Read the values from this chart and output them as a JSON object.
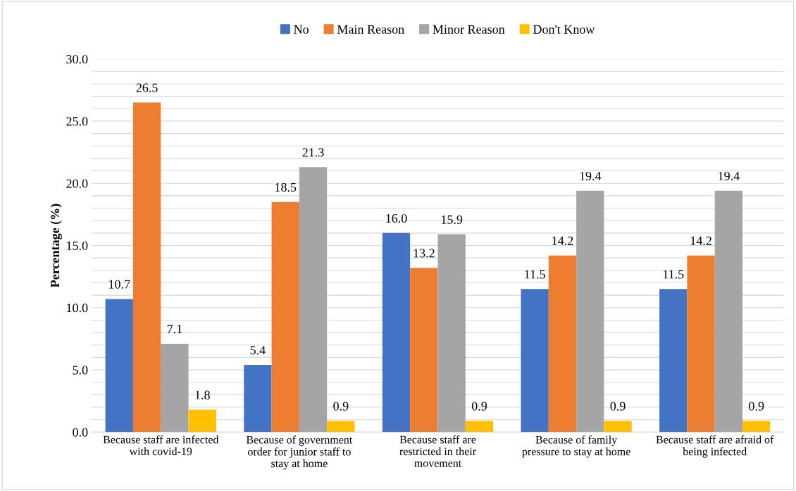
{
  "chart_data": {
    "type": "bar",
    "ylabel": "Percentage (%)",
    "categories": [
      "Because staff are infected\nwith covid-19",
      "Because of government\norder for junior staff to\nstay at home",
      "Because staff are\nrestricted in their\nmovement",
      "Because of family\npressure to stay at home",
      "Because staff are afraid of\nbeing infected"
    ],
    "series": [
      {
        "name": "No",
        "color": "#4472c4",
        "values": [
          10.7,
          5.4,
          16.0,
          11.5,
          11.5
        ],
        "value_labels": [
          "10.7",
          "5.4",
          "16.0",
          "11.5",
          "11.5"
        ]
      },
      {
        "name": "Main Reason",
        "color": "#ed7d31",
        "values": [
          26.5,
          18.5,
          13.2,
          14.2,
          14.2
        ],
        "value_labels": [
          "26.5",
          "18.5",
          "13.2",
          "14.2",
          "14.2"
        ]
      },
      {
        "name": "Minor Reason",
        "color": "#a5a5a5",
        "values": [
          7.1,
          21.3,
          15.9,
          19.4,
          19.4
        ],
        "value_labels": [
          "7.1",
          "21.3",
          "15.9",
          "19.4",
          "19.4"
        ]
      },
      {
        "name": "Don't Know",
        "color": "#ffc000",
        "values": [
          1.8,
          0.9,
          0.9,
          0.9,
          0.9
        ],
        "value_labels": [
          "1.8",
          "0.9",
          "0.9",
          "0.9",
          "0.9"
        ]
      }
    ],
    "ylim": [
      0,
      30
    ],
    "yticks": [
      {
        "value": 0,
        "label": "0.0"
      },
      {
        "value": 1,
        "label": null
      },
      {
        "value": 2,
        "label": null
      },
      {
        "value": 3,
        "label": null
      },
      {
        "value": 4,
        "label": null
      },
      {
        "value": 5,
        "label": "5.0"
      },
      {
        "value": 6,
        "label": null
      },
      {
        "value": 7,
        "label": null
      },
      {
        "value": 8,
        "label": null
      },
      {
        "value": 9,
        "label": null
      },
      {
        "value": 10,
        "label": "10.0"
      },
      {
        "value": 11,
        "label": null
      },
      {
        "value": 12,
        "label": null
      },
      {
        "value": 13,
        "label": null
      },
      {
        "value": 14,
        "label": null
      },
      {
        "value": 15,
        "label": "15.0"
      },
      {
        "value": 16,
        "label": null
      },
      {
        "value": 17,
        "label": null
      },
      {
        "value": 18,
        "label": null
      },
      {
        "value": 19,
        "label": null
      },
      {
        "value": 20,
        "label": "20.0"
      },
      {
        "value": 21,
        "label": null
      },
      {
        "value": 22,
        "label": null
      },
      {
        "value": 23,
        "label": null
      },
      {
        "value": 24,
        "label": null
      },
      {
        "value": 25,
        "label": "25.0"
      },
      {
        "value": 26,
        "label": null
      },
      {
        "value": 27,
        "label": null
      },
      {
        "value": 28,
        "label": null
      },
      {
        "value": 29,
        "label": null
      },
      {
        "value": 30,
        "label": "30.0"
      }
    ],
    "grid": "y",
    "legend": "top"
  }
}
